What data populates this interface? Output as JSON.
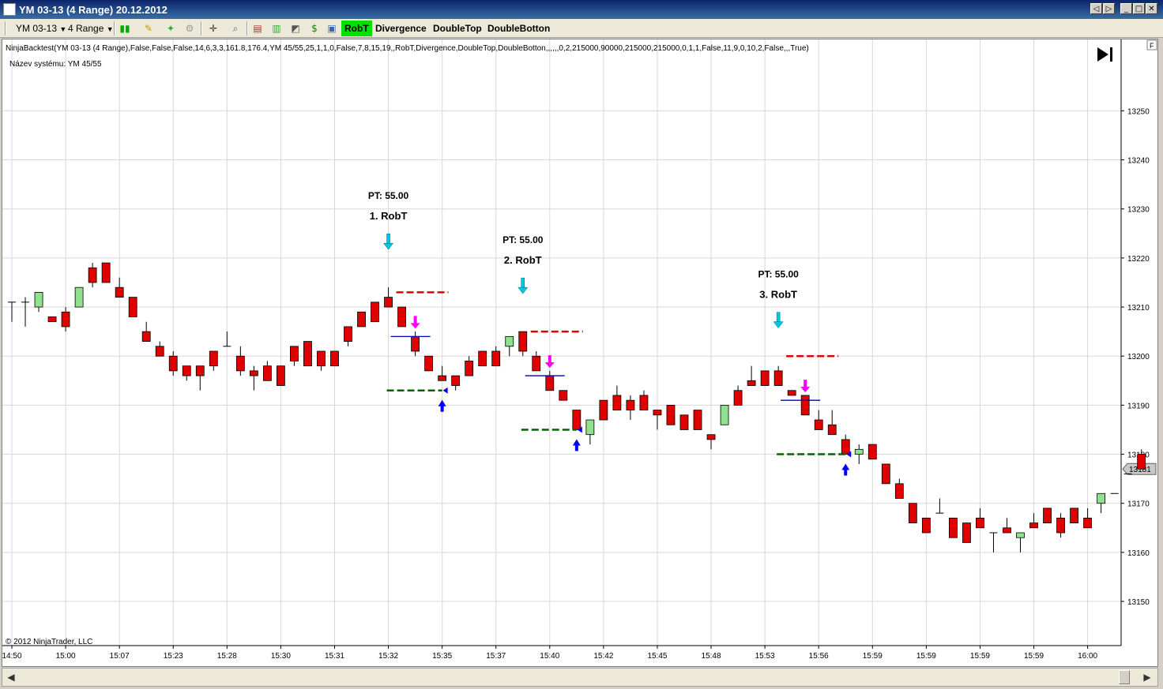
{
  "window": {
    "title": "YM 03-13 (4 Range)  20.12.2012",
    "buttons": [
      "◁",
      "▷",
      "_",
      "□",
      "✕"
    ]
  },
  "toolbar": {
    "instrument": "YM 03-13",
    "period": "4 Range",
    "strategy_buttons": [
      {
        "label": "RobT",
        "active": true
      },
      {
        "label": "Divergence",
        "active": false
      },
      {
        "label": "DoubleTop",
        "active": false
      },
      {
        "label": "DoubleBotton",
        "active": false
      }
    ],
    "icons": [
      "candlestick-style-icon",
      "drawing-pencil-icon",
      "add-indicator-icon",
      "add-strategy-icon",
      "crosshair-icon",
      "zoom-icon",
      "data-box-icon",
      "chart-properties-icon",
      "performance-icon",
      "dollar-icon",
      "properties-icon"
    ]
  },
  "chart": {
    "strategy_line": "NinjaBacktest(YM 03-13 (4 Range),False,False,False,14,6,3,3,161.8,176.4,YM 45/55,25,1,1,0,False,7,8,15,19,,RobT,Divergence,DoubleTop,DoubleBotton,,,,,,0,2,215000,90000,215000,215000,0,1,1,False,11,9,0,10,2,False,,,True)",
    "system_name": "Název systému: YM 45/55",
    "copyright": "© 2012 NinjaTrader, LLC",
    "corner_label": "F",
    "current_price": "13181",
    "annotations": [
      {
        "pt": "PT: 55.00",
        "label": "1. RobT"
      },
      {
        "pt": "PT: 55.00",
        "label": "2. RobT"
      },
      {
        "pt": "PT: 55.00",
        "label": "3. RobT"
      }
    ]
  },
  "chart_data": {
    "type": "candlestick",
    "y_ticks": [
      13150,
      13160,
      13170,
      13180,
      13190,
      13200,
      13210,
      13220,
      13230,
      13240,
      13250
    ],
    "ylim": [
      13141,
      13261
    ],
    "x_ticks": [
      "14:50",
      "15:00",
      "15:07",
      "15:23",
      "15:28",
      "15:30",
      "15:31",
      "15:32",
      "15:35",
      "15:37",
      "15:40",
      "15:42",
      "15:45",
      "15:48",
      "15:53",
      "15:56",
      "15:59",
      "15:59",
      "15:59",
      "15:59",
      "16:00"
    ],
    "grid": true,
    "colors": {
      "up": "#90e090",
      "down": "#e00000",
      "wick": "#000000",
      "target": "#e00000",
      "stop": "#006400",
      "entry": "#0000c0",
      "entry_arrow": "#00c8e0",
      "signal_arrow": "#ff00ff",
      "exit_arrow": "#0000ff"
    },
    "candles": [
      [
        13211,
        13211,
        13207,
        13211
      ],
      [
        13211,
        13212,
        13206,
        13211
      ],
      [
        13210,
        13213,
        13209,
        13213
      ],
      [
        13208,
        13208,
        13207,
        13207
      ],
      [
        13209,
        13210,
        13205,
        13206
      ],
      [
        13210,
        13214,
        13210,
        13214
      ],
      [
        13218,
        13219,
        13214,
        13215
      ],
      [
        13219,
        13219,
        13215,
        13215
      ],
      [
        13214,
        13216,
        13212,
        13212
      ],
      [
        13212,
        13212,
        13208,
        13208
      ],
      [
        13205,
        13207,
        13203,
        13203
      ],
      [
        13202,
        13203,
        13200,
        13200
      ],
      [
        13200,
        13201,
        13196,
        13197
      ],
      [
        13198,
        13198,
        13195,
        13196
      ],
      [
        13198,
        13198,
        13193,
        13196
      ],
      [
        13201,
        13201,
        13197,
        13198
      ],
      [
        13202,
        13205,
        13202,
        13202
      ],
      [
        13200,
        13202,
        13196,
        13197
      ],
      [
        13197,
        13198,
        13193,
        13196
      ],
      [
        13198,
        13199,
        13195,
        13195
      ],
      [
        13198,
        13198,
        13194,
        13194
      ],
      [
        13202,
        13202,
        13198,
        13199
      ],
      [
        13203,
        13203,
        13198,
        13198
      ],
      [
        13201,
        13201,
        13197,
        13198
      ],
      [
        13201,
        13201,
        13198,
        13198
      ],
      [
        13206,
        13206,
        13202,
        13203
      ],
      [
        13209,
        13209,
        13206,
        13206
      ],
      [
        13211,
        13211,
        13207,
        13207
      ],
      [
        13212,
        13214,
        13210,
        13210
      ],
      [
        13210,
        13210,
        13206,
        13206
      ],
      [
        13204,
        13205,
        13200,
        13201
      ],
      [
        13200,
        13200,
        13197,
        13197
      ],
      [
        13196,
        13198,
        13195,
        13195
      ],
      [
        13196,
        13196,
        13193,
        13194
      ],
      [
        13199,
        13200,
        13196,
        13196
      ],
      [
        13201,
        13201,
        13198,
        13198
      ],
      [
        13201,
        13202,
        13198,
        13198
      ],
      [
        13202,
        13203,
        13200,
        13204
      ],
      [
        13205,
        13205,
        13200,
        13201
      ],
      [
        13200,
        13201,
        13197,
        13197
      ],
      [
        13196,
        13197,
        13193,
        13193
      ],
      [
        13193,
        13193,
        13191,
        13191
      ],
      [
        13189,
        13189,
        13185,
        13185
      ],
      [
        13184,
        13187,
        13182,
        13187
      ],
      [
        13191,
        13191,
        13187,
        13187
      ],
      [
        13192,
        13194,
        13189,
        13189
      ],
      [
        13191,
        13192,
        13187,
        13189
      ],
      [
        13192,
        13193,
        13189,
        13189
      ],
      [
        13189,
        13189,
        13185,
        13188
      ],
      [
        13190,
        13190,
        13186,
        13186
      ],
      [
        13188,
        13188,
        13185,
        13185
      ],
      [
        13189,
        13189,
        13185,
        13185
      ],
      [
        13184,
        13184,
        13181,
        13183
      ],
      [
        13186,
        13190,
        13186,
        13190
      ],
      [
        13193,
        13194,
        13190,
        13190
      ],
      [
        13195,
        13198,
        13194,
        13194
      ],
      [
        13197,
        13197,
        13194,
        13194
      ],
      [
        13197,
        13198,
        13194,
        13194
      ],
      [
        13193,
        13193,
        13192,
        13192
      ],
      [
        13192,
        13192,
        13188,
        13188
      ],
      [
        13187,
        13189,
        13185,
        13185
      ],
      [
        13186,
        13189,
        13184,
        13184
      ],
      [
        13183,
        13184,
        13180,
        13180
      ],
      [
        13180,
        13182,
        13178,
        13181
      ],
      [
        13182,
        13182,
        13179,
        13179
      ],
      [
        13178,
        13178,
        13174,
        13174
      ],
      [
        13174,
        13175,
        13171,
        13171
      ],
      [
        13170,
        13170,
        13166,
        13166
      ],
      [
        13167,
        13167,
        13164,
        13164
      ],
      [
        13168,
        13171,
        13168,
        13168
      ],
      [
        13167,
        13167,
        13163,
        13163
      ],
      [
        13166,
        13166,
        13162,
        13162
      ],
      [
        13167,
        13169,
        13165,
        13165
      ],
      [
        13164,
        13164,
        13160,
        13164
      ],
      [
        13165,
        13167,
        13164,
        13164
      ],
      [
        13163,
        13164,
        13160,
        13164
      ],
      [
        13166,
        13168,
        13165,
        13165
      ],
      [
        13169,
        13169,
        13166,
        13166
      ],
      [
        13167,
        13168,
        13163,
        13164
      ],
      [
        13169,
        13169,
        13166,
        13166
      ],
      [
        13167,
        13169,
        13165,
        13165
      ],
      [
        13170,
        13172,
        13168,
        13172
      ],
      [
        13172,
        13172,
        13172,
        13172
      ],
      [
        13176,
        13176,
        13176,
        13176
      ],
      [
        13180,
        13181,
        13177,
        13177
      ]
    ],
    "trades": [
      {
        "entry_price": 13204,
        "target_price": 13213,
        "stop_price": 13193
      },
      {
        "entry_price": 13196,
        "target_price": 13205,
        "stop_price": 13185
      },
      {
        "entry_price": 13191,
        "target_price": 13200,
        "stop_price": 13180
      }
    ]
  }
}
